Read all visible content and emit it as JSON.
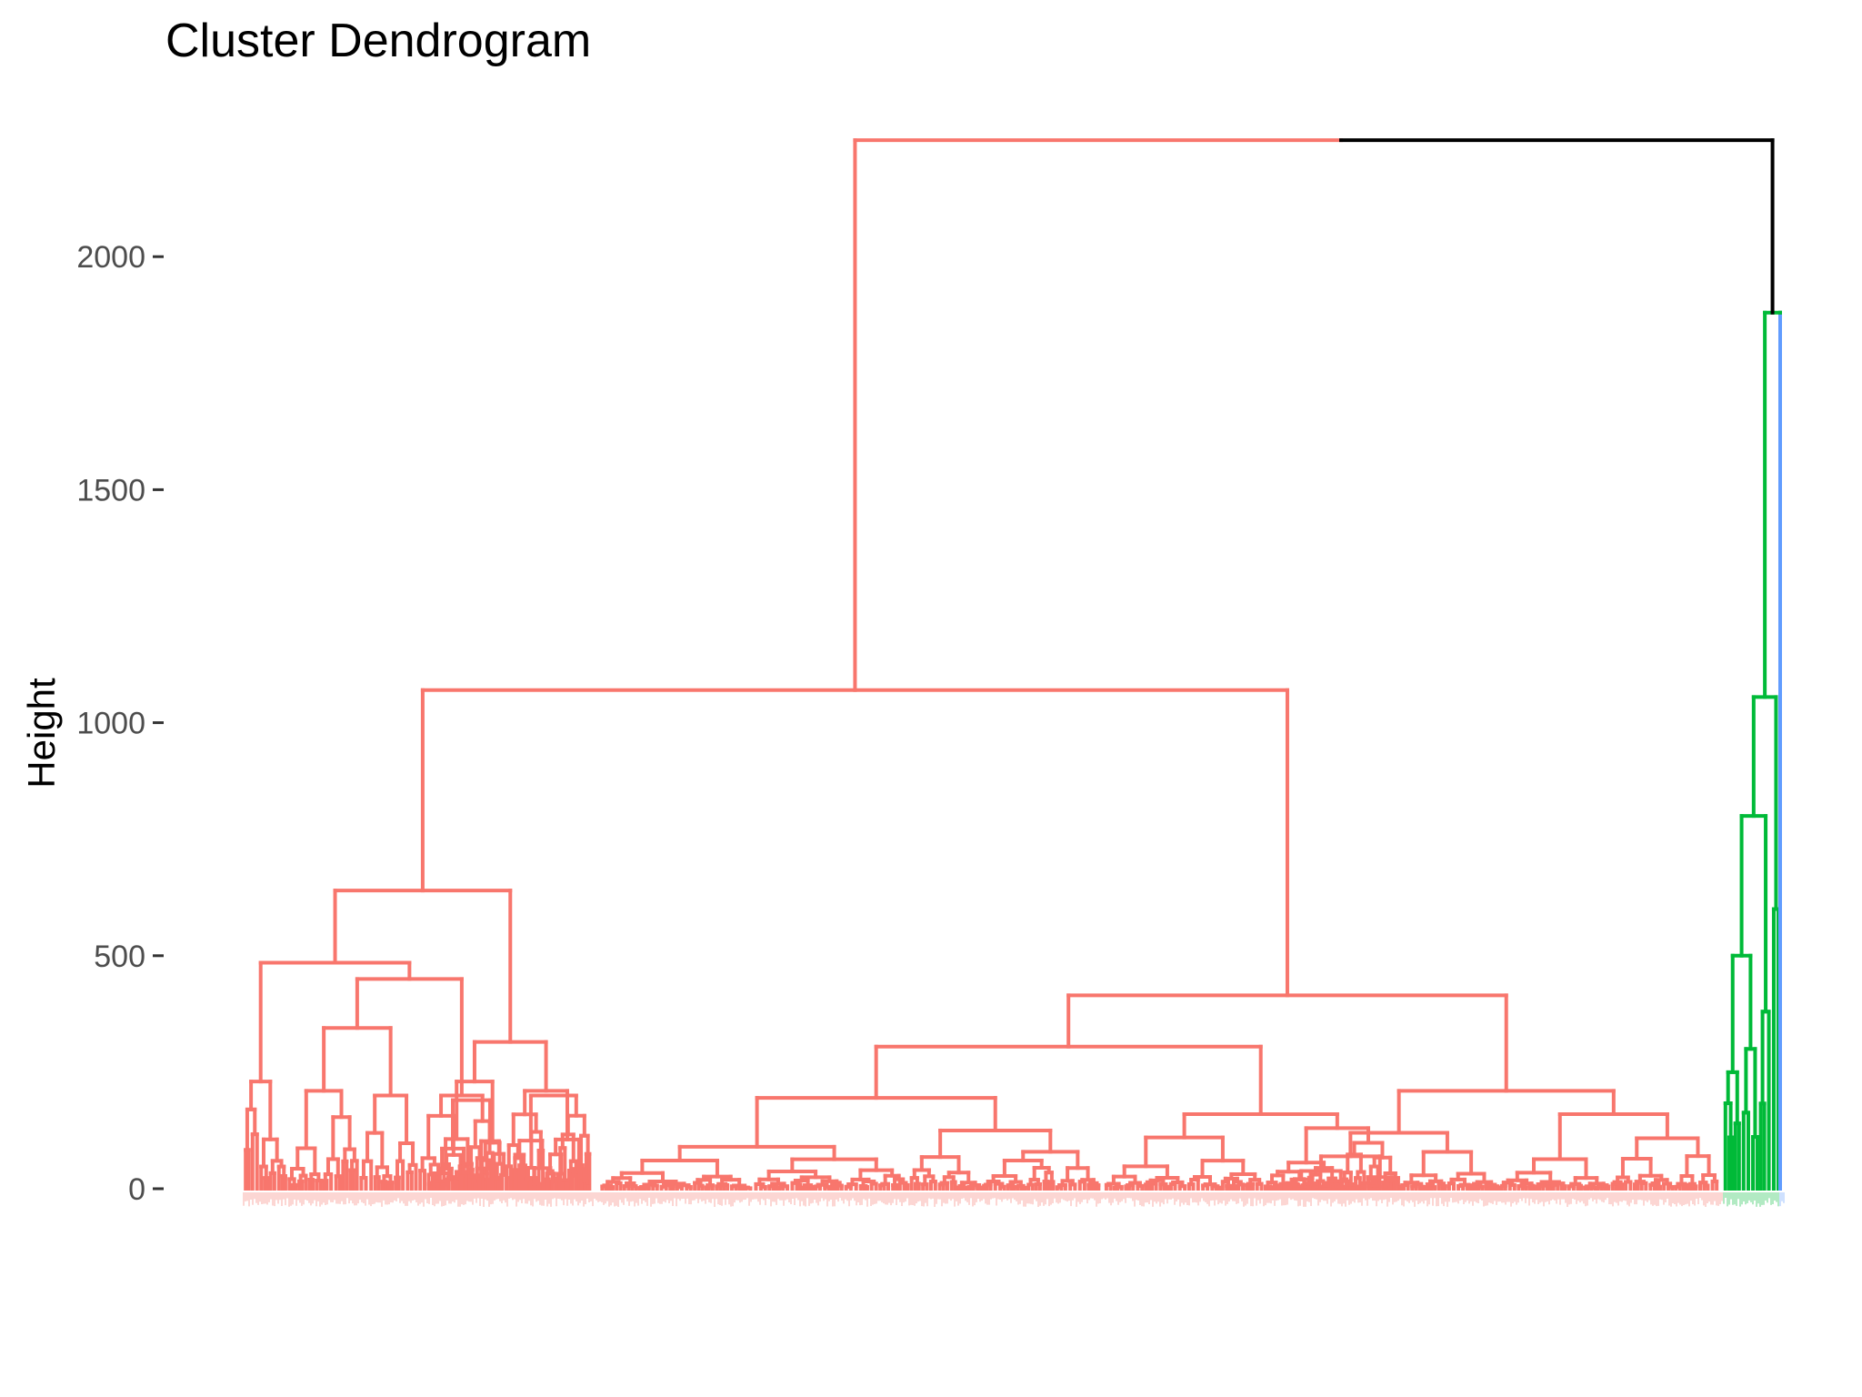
{
  "chart_data": {
    "type": "dendrogram",
    "title": "Cluster Dendrogram",
    "xlabel": "",
    "ylabel": "Height",
    "ylim": [
      0,
      2250
    ],
    "y_ticks": [
      "0",
      "500",
      "1000",
      "1500",
      "2000"
    ],
    "y_tick_values": [
      0,
      500,
      1000,
      1500,
      2000
    ],
    "grid": false,
    "colors": {
      "cluster_1": "#F8766D",
      "cluster_2": "#00BA38",
      "cluster_3": "#619CFF",
      "root": "#000000"
    },
    "merges": [
      {
        "name": "root",
        "height": 2250,
        "color": "#000000",
        "left": "cluster_1_top",
        "right": "right_group"
      },
      {
        "name": "cluster_1_top",
        "height": 1070,
        "color": "#F8766D",
        "left": "left_group",
        "right": "middle_group"
      },
      {
        "name": "left_group",
        "height": 640,
        "color": "#F8766D"
      },
      {
        "name": "left_a",
        "height": 485,
        "color": "#F8766D"
      },
      {
        "name": "left_a_sub",
        "height": 450,
        "color": "#F8766D"
      },
      {
        "name": "left_a_sub2",
        "height": 345,
        "color": "#F8766D"
      },
      {
        "name": "left_b",
        "height": 315,
        "color": "#F8766D"
      },
      {
        "name": "middle_group",
        "height": 415,
        "color": "#F8766D"
      },
      {
        "name": "middle_a",
        "height": 305,
        "color": "#F8766D"
      },
      {
        "name": "middle_a_sub",
        "height": 195,
        "color": "#F8766D"
      },
      {
        "name": "middle_b",
        "height": 210,
        "color": "#F8766D"
      },
      {
        "name": "right_group",
        "height": 1880,
        "color": "#00BA38",
        "left": "cluster_2",
        "right": "cluster_3"
      },
      {
        "name": "cluster_2",
        "height": 1055,
        "color": "#00BA38"
      },
      {
        "name": "cluster_2_sub",
        "height": 800,
        "color": "#00BA38"
      }
    ]
  }
}
